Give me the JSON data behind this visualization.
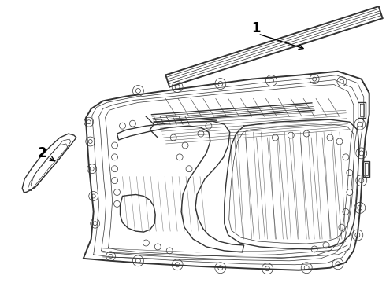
{
  "background_color": "#ffffff",
  "line_color": "#333333",
  "label_color": "#000000",
  "figsize": [
    4.9,
    3.6
  ],
  "dpi": 100,
  "label_1": "1",
  "label_2": "2",
  "lw_main": 1.0,
  "lw_thin": 0.5,
  "lw_thick": 1.4
}
